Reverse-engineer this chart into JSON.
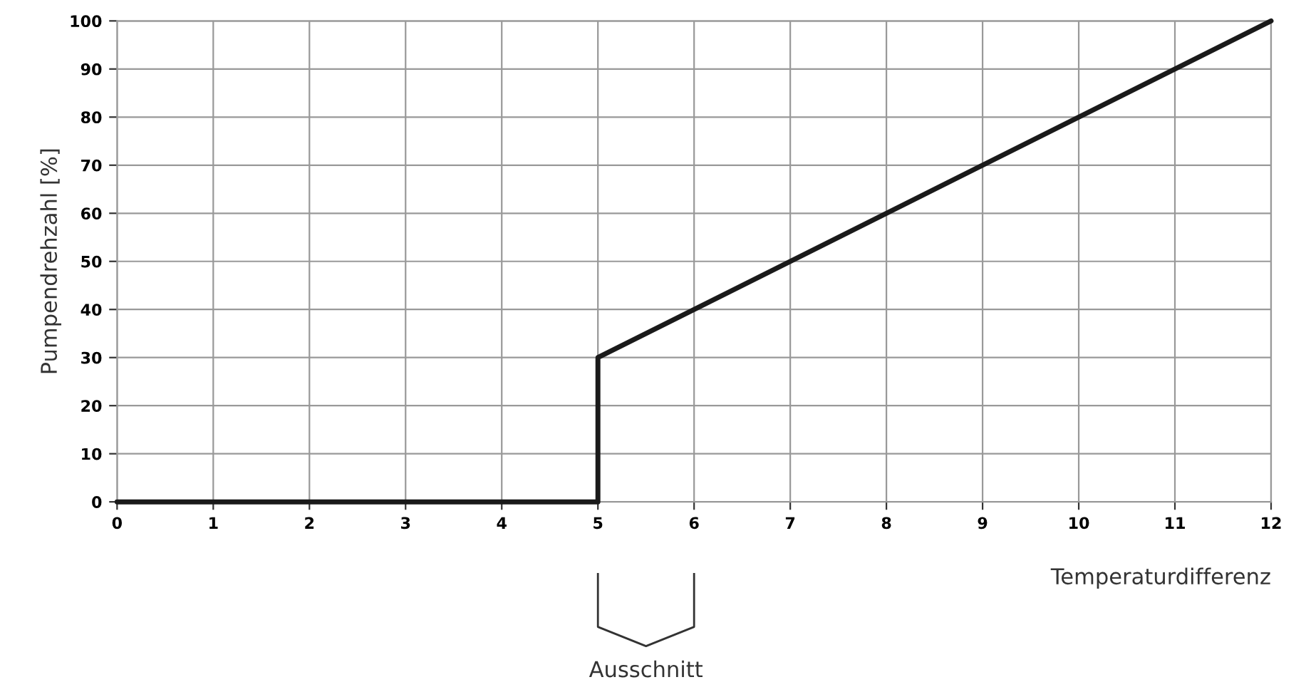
{
  "chart_data": {
    "type": "line",
    "xlabel": "Temperaturdifferenz",
    "ylabel": "Pumpendrehzahl [%]",
    "x": [
      0,
      5,
      5,
      12
    ],
    "series": [
      {
        "color": "#1a1a1a",
        "values": [
          0,
          0,
          30,
          100
        ]
      }
    ],
    "xlim": [
      0,
      12
    ],
    "ylim": [
      0,
      100
    ],
    "xticks": [
      0,
      1,
      2,
      3,
      4,
      5,
      6,
      7,
      8,
      9,
      10,
      11,
      12
    ],
    "yticks": [
      0,
      10,
      20,
      30,
      40,
      50,
      60,
      70,
      80,
      90,
      100
    ],
    "grid": true,
    "marker": "none",
    "line_style": "solid",
    "annotations": [
      "Ausschnitt"
    ]
  }
}
